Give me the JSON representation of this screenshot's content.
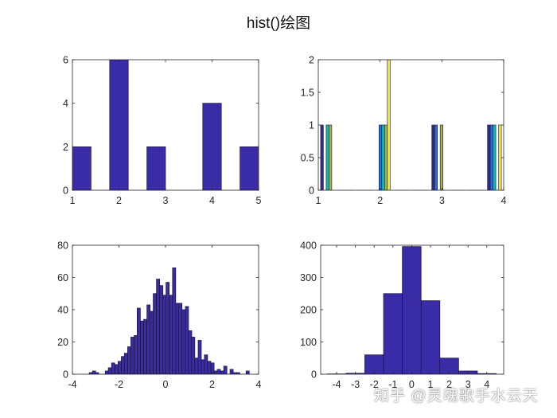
{
  "figure": {
    "title": "hist()绘图",
    "watermark": "知乎 @灵魂歌手水云天"
  },
  "colors": {
    "bar_fill": "#3a2ba6",
    "bar_edge": "#1a1440",
    "axis": "#262626"
  },
  "chart_data": [
    {
      "type": "bar",
      "position": "top-left",
      "xlim": [
        1,
        5
      ],
      "ylim": [
        0,
        6
      ],
      "xticks": [
        1,
        2,
        3,
        4,
        5
      ],
      "yticks": [
        0,
        2,
        4,
        6
      ],
      "bin_width": 0.4,
      "x": [
        1.2,
        1.6,
        2.0,
        2.4,
        2.8,
        3.2,
        3.6,
        4.0,
        4.4,
        4.8
      ],
      "values": [
        2,
        0,
        6,
        0,
        2,
        0,
        0,
        4,
        0,
        2
      ]
    },
    {
      "type": "bar",
      "position": "top-right",
      "xlim": [
        1,
        4
      ],
      "ylim": [
        0,
        2
      ],
      "xticks": [
        1,
        2,
        3,
        4
      ],
      "yticks": [
        0,
        0.5,
        1,
        1.5,
        2
      ],
      "bin_width": 0.3,
      "x": [
        1.15,
        1.45,
        1.75,
        2.05,
        2.35,
        2.65,
        2.95,
        3.25,
        3.55,
        3.85
      ],
      "series": [
        {
          "color": "#352a87",
          "values": [
            1,
            0,
            0,
            0,
            0,
            0,
            1,
            0,
            0,
            1
          ]
        },
        {
          "color": "#2d6fd6",
          "values": [
            0,
            0,
            0,
            1,
            0,
            0,
            1,
            0,
            0,
            1
          ]
        },
        {
          "color": "#20b2b0",
          "values": [
            1,
            0,
            0,
            1,
            0,
            0,
            0,
            0,
            0,
            1
          ]
        },
        {
          "color": "#a8b14a",
          "values": [
            1,
            0,
            0,
            1,
            0,
            0,
            1,
            0,
            0,
            0
          ]
        },
        {
          "color": "#f2ec1c",
          "values": [
            0,
            0,
            0,
            2,
            0,
            0,
            0,
            0,
            0,
            1
          ]
        }
      ]
    },
    {
      "type": "bar",
      "position": "bottom-left",
      "xlim": [
        -4,
        4
      ],
      "ylim": [
        0,
        80
      ],
      "xticks": [
        -4,
        -2,
        0,
        2,
        4
      ],
      "yticks": [
        0,
        20,
        40,
        60,
        80
      ],
      "bin_width": 0.1376,
      "x": [
        -3.21,
        -3.07,
        -2.94,
        -2.8,
        -2.66,
        -2.52,
        -2.39,
        -2.25,
        -2.11,
        -1.97,
        -1.83,
        -1.7,
        -1.56,
        -1.42,
        -1.28,
        -1.15,
        -1.01,
        -0.87,
        -0.73,
        -0.6,
        -0.46,
        -0.32,
        -0.18,
        -0.04,
        0.09,
        0.23,
        0.37,
        0.51,
        0.64,
        0.78,
        0.92,
        1.06,
        1.19,
        1.33,
        1.47,
        1.61,
        1.74,
        1.88,
        2.02,
        2.16,
        2.29,
        2.43,
        2.57,
        2.71,
        2.84,
        2.98,
        3.12,
        3.26,
        3.39,
        3.53
      ],
      "values": [
        1,
        2,
        1,
        0,
        0,
        2,
        4,
        7,
        6,
        8,
        11,
        13,
        17,
        23,
        24,
        41,
        33,
        34,
        43,
        39,
        50,
        59,
        55,
        49,
        57,
        49,
        66,
        44,
        44,
        40,
        42,
        27,
        23,
        10,
        21,
        9,
        12,
        8,
        7,
        2,
        3,
        2,
        5,
        0,
        3,
        1,
        1,
        0,
        0,
        2
      ]
    },
    {
      "type": "bar",
      "position": "bottom-right",
      "xlim": [
        -4.85,
        4.9
      ],
      "ylim": [
        0,
        400
      ],
      "xticks": [
        -4,
        -3,
        -2,
        -1,
        0,
        1,
        2,
        3,
        4
      ],
      "yticks": [
        0,
        100,
        200,
        300,
        400
      ],
      "bin_width": 1,
      "x": [
        -4,
        -3,
        -2,
        -1,
        0,
        1,
        2,
        3,
        4
      ],
      "values": [
        1,
        3,
        60,
        250,
        396,
        228,
        50,
        10,
        2
      ]
    }
  ]
}
